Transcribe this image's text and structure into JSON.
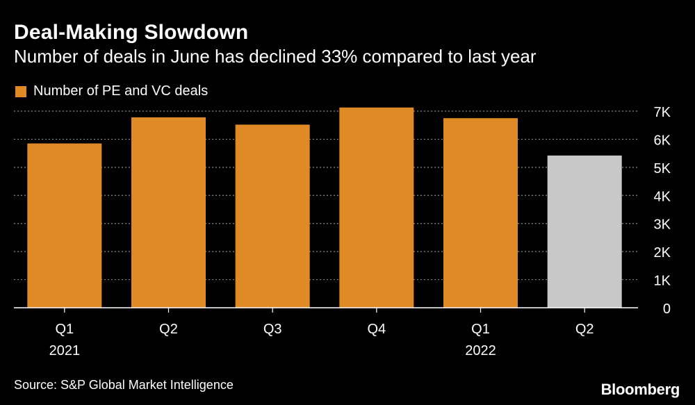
{
  "title": "Deal-Making Slowdown",
  "subtitle": "Number of deals in June has declined 33% compared to last year",
  "source": "Source: S&P Global Market Intelligence",
  "brand": "Bloomberg",
  "colors": {
    "background": "#000000",
    "bar": "#e08a26",
    "bar_highlight": "#c8c8c8",
    "grid": "#8a8a8a",
    "text": "#ffffff"
  },
  "chart_data": {
    "type": "bar",
    "categories": [
      "Q1",
      "Q2",
      "Q3",
      "Q4",
      "Q1",
      "Q2"
    ],
    "year_labels": [
      "2021",
      "",
      "",
      "",
      "2022",
      ""
    ],
    "series": [
      {
        "name": "Number of PE and VC deals",
        "values": [
          5850,
          6780,
          6520,
          7130,
          6750,
          5420
        ]
      }
    ],
    "highlight_index": 5,
    "ylim": [
      0,
      7000
    ],
    "yticks": [
      0,
      1000,
      2000,
      3000,
      4000,
      5000,
      6000,
      7000
    ],
    "ytick_labels": [
      "0",
      "1K",
      "2K",
      "3K",
      "4K",
      "5K",
      "6K",
      "7K"
    ],
    "y_axis_position": "right",
    "grid": "dotted horizontal",
    "legend_position": "top-left",
    "xlabel": "",
    "ylabel": ""
  }
}
